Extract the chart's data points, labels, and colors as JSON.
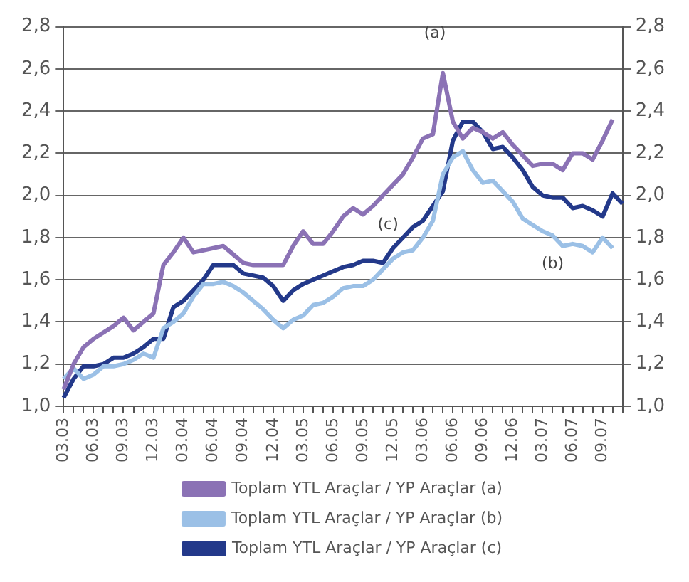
{
  "chart_data": {
    "type": "line",
    "categories": [
      "03.03",
      null,
      null,
      "06.03",
      null,
      null,
      "09.03",
      null,
      null,
      "12.03",
      null,
      null,
      "03.04",
      null,
      null,
      "06.04",
      null,
      null,
      "09.04",
      null,
      null,
      "12.04",
      null,
      null,
      "03.05",
      null,
      null,
      "06.05",
      null,
      null,
      "09.05",
      null,
      null,
      "12.05",
      null,
      null,
      "03.06",
      null,
      null,
      "06.06",
      null,
      null,
      "09.06",
      null,
      null,
      "12.06",
      null,
      null,
      "03.07",
      null,
      null,
      "06.07",
      null,
      null,
      "09.07",
      null,
      null
    ],
    "series": [
      {
        "name": "Toplam YTL Araçlar / YP Araçlar (a)",
        "color": "#8b72b5",
        "values": [
          1.08,
          1.2,
          1.28,
          1.32,
          1.35,
          1.38,
          1.42,
          1.36,
          1.4,
          1.44,
          1.67,
          1.73,
          1.8,
          1.73,
          1.74,
          1.75,
          1.76,
          1.72,
          1.68,
          1.67,
          1.67,
          1.67,
          1.67,
          1.76,
          1.83,
          1.77,
          1.77,
          1.83,
          1.9,
          1.94,
          1.91,
          1.95,
          2.0,
          2.05,
          2.1,
          2.18,
          2.27,
          2.29,
          2.58,
          2.35,
          2.27,
          2.32,
          2.3,
          2.27,
          2.3,
          2.24,
          2.19,
          2.14,
          2.15,
          2.15,
          2.12,
          2.2,
          2.2,
          2.17,
          2.26,
          2.36,
          null
        ]
      },
      {
        "name": "Toplam YTL Araçlar / YP Araçlar (b)",
        "color": "#9bc0e6",
        "values": [
          1.13,
          1.18,
          1.13,
          1.15,
          1.19,
          1.19,
          1.2,
          1.22,
          1.25,
          1.23,
          1.37,
          1.4,
          1.44,
          1.52,
          1.58,
          1.58,
          1.59,
          1.57,
          1.54,
          1.5,
          1.46,
          1.41,
          1.37,
          1.41,
          1.43,
          1.48,
          1.49,
          1.52,
          1.56,
          1.57,
          1.57,
          1.6,
          1.65,
          1.7,
          1.73,
          1.74,
          1.8,
          1.88,
          2.1,
          2.18,
          2.21,
          2.12,
          2.06,
          2.07,
          2.02,
          1.97,
          1.89,
          1.86,
          1.83,
          1.81,
          1.76,
          1.77,
          1.76,
          1.73,
          1.8,
          1.75,
          null
        ]
      },
      {
        "name": "Toplam YTL Araçlar / YP Araçlar (c)",
        "color": "#23398a",
        "values": [
          1.04,
          1.13,
          1.19,
          1.19,
          1.2,
          1.23,
          1.23,
          1.25,
          1.28,
          1.32,
          1.32,
          1.47,
          1.5,
          1.55,
          1.6,
          1.67,
          1.67,
          1.67,
          1.63,
          1.62,
          1.61,
          1.57,
          1.5,
          1.55,
          1.58,
          1.6,
          1.62,
          1.64,
          1.66,
          1.67,
          1.69,
          1.69,
          1.68,
          1.75,
          1.8,
          1.85,
          1.88,
          1.95,
          2.02,
          2.26,
          2.35,
          2.35,
          2.3,
          2.22,
          2.23,
          2.18,
          2.12,
          2.04,
          2.0,
          1.99,
          1.99,
          1.94,
          1.95,
          1.93,
          1.9,
          2.01,
          1.96
        ]
      }
    ],
    "ylim": [
      1.0,
      2.8
    ],
    "yticks": [
      {
        "value": 1.0,
        "label": "1,0"
      },
      {
        "value": 1.2,
        "label": "1,2"
      },
      {
        "value": 1.4,
        "label": "1,4"
      },
      {
        "value": 1.6,
        "label": "1,6"
      },
      {
        "value": 1.8,
        "label": "1,8"
      },
      {
        "value": 2.0,
        "label": "2,0"
      },
      {
        "value": 2.2,
        "label": "2,2"
      },
      {
        "value": 2.4,
        "label": "2,4"
      },
      {
        "value": 2.6,
        "label": "2,6"
      },
      {
        "value": 2.8,
        "label": "2,8"
      }
    ],
    "y2lim": [
      1.0,
      2.8
    ],
    "y2ticks": [
      {
        "value": 1.0,
        "label": "1,0"
      },
      {
        "value": 1.2,
        "label": "1,2"
      },
      {
        "value": 1.4,
        "label": "1,4"
      },
      {
        "value": 1.6,
        "label": "1,6"
      },
      {
        "value": 1.8,
        "label": "1,8"
      },
      {
        "value": 2.0,
        "label": "2,0"
      },
      {
        "value": 2.2,
        "label": "2,2"
      },
      {
        "value": 2.4,
        "label": "2,4"
      },
      {
        "value": 2.6,
        "label": "2,6"
      },
      {
        "value": 2.8,
        "label": "2,8"
      }
    ],
    "annotations": [
      "(a)",
      "(b)",
      "(c)"
    ],
    "grid": "y",
    "legend": "bottom",
    "marker": "none",
    "line_style": "solid"
  }
}
